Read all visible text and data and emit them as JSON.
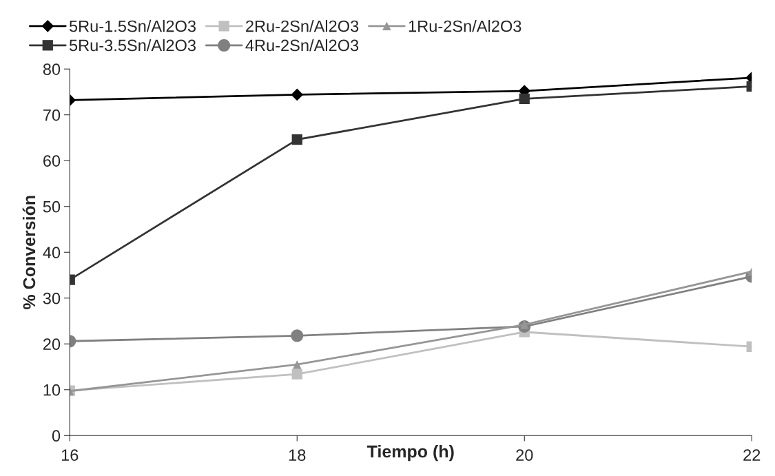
{
  "chart_data": {
    "type": "line",
    "xlabel": "Tiempo (h)",
    "ylabel": "% Conversión",
    "x": [
      16,
      18,
      20,
      22
    ],
    "xlim": [
      16,
      22
    ],
    "xticks": [
      16,
      18,
      20,
      22
    ],
    "ylim": [
      0,
      80
    ],
    "yticks": [
      0,
      10,
      20,
      30,
      40,
      50,
      60,
      70,
      80
    ],
    "grid": false,
    "legend": "top",
    "series": [
      {
        "name": "5Ru-1.5Sn/Al2O3",
        "color": "#000000",
        "marker": "diamond",
        "values": [
          73.2,
          74.4,
          75.2,
          78.1
        ]
      },
      {
        "name": "5Ru-3.5Sn/Al2O3",
        "color": "#333333",
        "marker": "square",
        "values": [
          34.0,
          64.6,
          73.5,
          76.2
        ]
      },
      {
        "name": "2Ru-2Sn/Al2O3",
        "color": "#c0c0c0",
        "marker": "square",
        "values": [
          9.8,
          13.4,
          22.6,
          19.4
        ]
      },
      {
        "name": "4Ru-2Sn/Al2O3",
        "color": "#808080",
        "marker": "circle",
        "values": [
          20.6,
          21.8,
          23.8,
          34.7
        ]
      },
      {
        "name": "1Ru-2Sn/Al2O3",
        "color": "#969696",
        "marker": "triangle",
        "values": [
          9.7,
          15.5,
          24.2,
          35.8
        ]
      }
    ]
  }
}
